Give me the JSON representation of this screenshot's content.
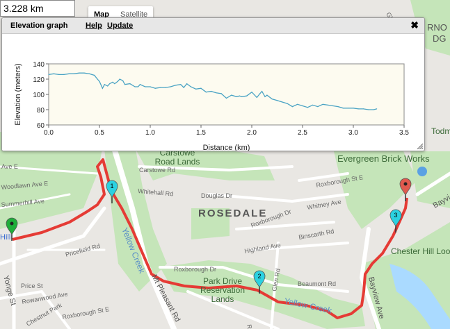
{
  "distance_readout": "3.228 km",
  "map_type": {
    "map_label": "Map",
    "satellite_label": "Satellite"
  },
  "panel": {
    "title": "Elevation graph",
    "help_label": "Help",
    "update_label": "Update",
    "close_label": "✖"
  },
  "map_labels": {
    "carstowe_lands": [
      "Carstowe",
      "Road Lands"
    ],
    "evergreen": "Evergreen Brick Works",
    "rosedale": "ROSEDALE",
    "park_drive": [
      "Park Drive",
      "Reservation",
      "Lands"
    ],
    "chester_hill": "Chester Hill Loo",
    "todm": "Todm",
    "yellow_creek_1": "Yellow Creek",
    "yellow_creek_2": "Yellow Creek",
    "streets": {
      "carstowe_rd": "Carstowe Rd",
      "whitehall": "Whitehall Rd",
      "douglas": "Douglas Dr",
      "roxborough_dr": "Roxborough Dr",
      "roxborough_dr2": "Roxborough Dr",
      "roxborough_st": "Roxborough St E",
      "whitney": "Whitney Ave",
      "binscarth": "Binscarth Rd",
      "highland": "Highland Ave",
      "beaumont": "Beaumont Rd",
      "glen": "Glen Rd",
      "bayview": "Bayview Ave",
      "bayvi": "Bayvi",
      "mt_pleasant": "Mt Pleasant Rd",
      "yonge": "Yonge St",
      "price": "Price St",
      "pricefield": "Pricefield Rd",
      "rowanwood": "Rowanwood Ave",
      "chestnut": "Chestnut Park",
      "roxborough_se": "Roxborough St E",
      "summerhill": "Summerhill Ave",
      "woodlawn": "Woodlawn Ave E",
      "jean_ave": "Ave E",
      "rd_label": "Rd",
      "gleny": "Gle",
      "rno": "RNO",
      "dg": "DG",
      "hill": "Hill"
    }
  },
  "markers": [
    {
      "label": "1",
      "color": "#2bd1e0"
    },
    {
      "label": "2",
      "color": "#2bd1e0"
    },
    {
      "label": "3",
      "color": "#2bd1e0"
    },
    {
      "label": "",
      "color": "#1fae3a"
    },
    {
      "label": "",
      "color": "#e05a4e"
    }
  ],
  "chart_data": {
    "type": "line",
    "xlabel": "Distance (km)",
    "ylabel": "Elevation (meters)",
    "xlim": [
      0,
      3.5
    ],
    "ylim": [
      60,
      140
    ],
    "xticks": [
      "0.0",
      "0.5",
      "1.0",
      "1.5",
      "2.0",
      "2.5",
      "3.0",
      "3.5"
    ],
    "yticks": [
      "60",
      "80",
      "100",
      "120",
      "140"
    ],
    "line_color": "#4aa3c4",
    "background": "#fdfbf0",
    "grid": false,
    "x": [
      0.0,
      0.05,
      0.1,
      0.15,
      0.2,
      0.25,
      0.3,
      0.35,
      0.4,
      0.45,
      0.48,
      0.5,
      0.53,
      0.55,
      0.58,
      0.6,
      0.63,
      0.65,
      0.68,
      0.7,
      0.73,
      0.75,
      0.8,
      0.85,
      0.88,
      0.9,
      0.95,
      1.0,
      1.05,
      1.1,
      1.15,
      1.2,
      1.25,
      1.3,
      1.33,
      1.36,
      1.4,
      1.45,
      1.5,
      1.55,
      1.6,
      1.65,
      1.7,
      1.75,
      1.8,
      1.85,
      1.88,
      1.9,
      1.95,
      2.0,
      2.05,
      2.08,
      2.1,
      2.13,
      2.15,
      2.2,
      2.25,
      2.3,
      2.35,
      2.4,
      2.45,
      2.5,
      2.55,
      2.6,
      2.65,
      2.7,
      2.75,
      2.8,
      2.85,
      2.9,
      2.95,
      3.0,
      3.05,
      3.1,
      3.15,
      3.2,
      3.23
    ],
    "y": [
      126,
      127,
      126,
      126,
      127,
      127,
      128,
      128,
      127,
      125,
      120,
      117,
      108,
      113,
      111,
      114,
      116,
      114,
      117,
      120,
      118,
      113,
      114,
      110,
      110,
      113,
      110,
      110,
      108,
      109,
      109,
      110,
      112,
      113,
      109,
      114,
      110,
      107,
      108,
      103,
      104,
      102,
      101,
      95,
      99,
      97,
      98,
      97,
      98,
      103,
      96,
      101,
      104,
      97,
      99,
      94,
      92,
      90,
      88,
      84,
      87,
      85,
      83,
      86,
      84,
      87,
      86,
      85,
      84,
      82,
      82,
      82,
      81,
      81,
      80,
      80,
      81
    ]
  }
}
